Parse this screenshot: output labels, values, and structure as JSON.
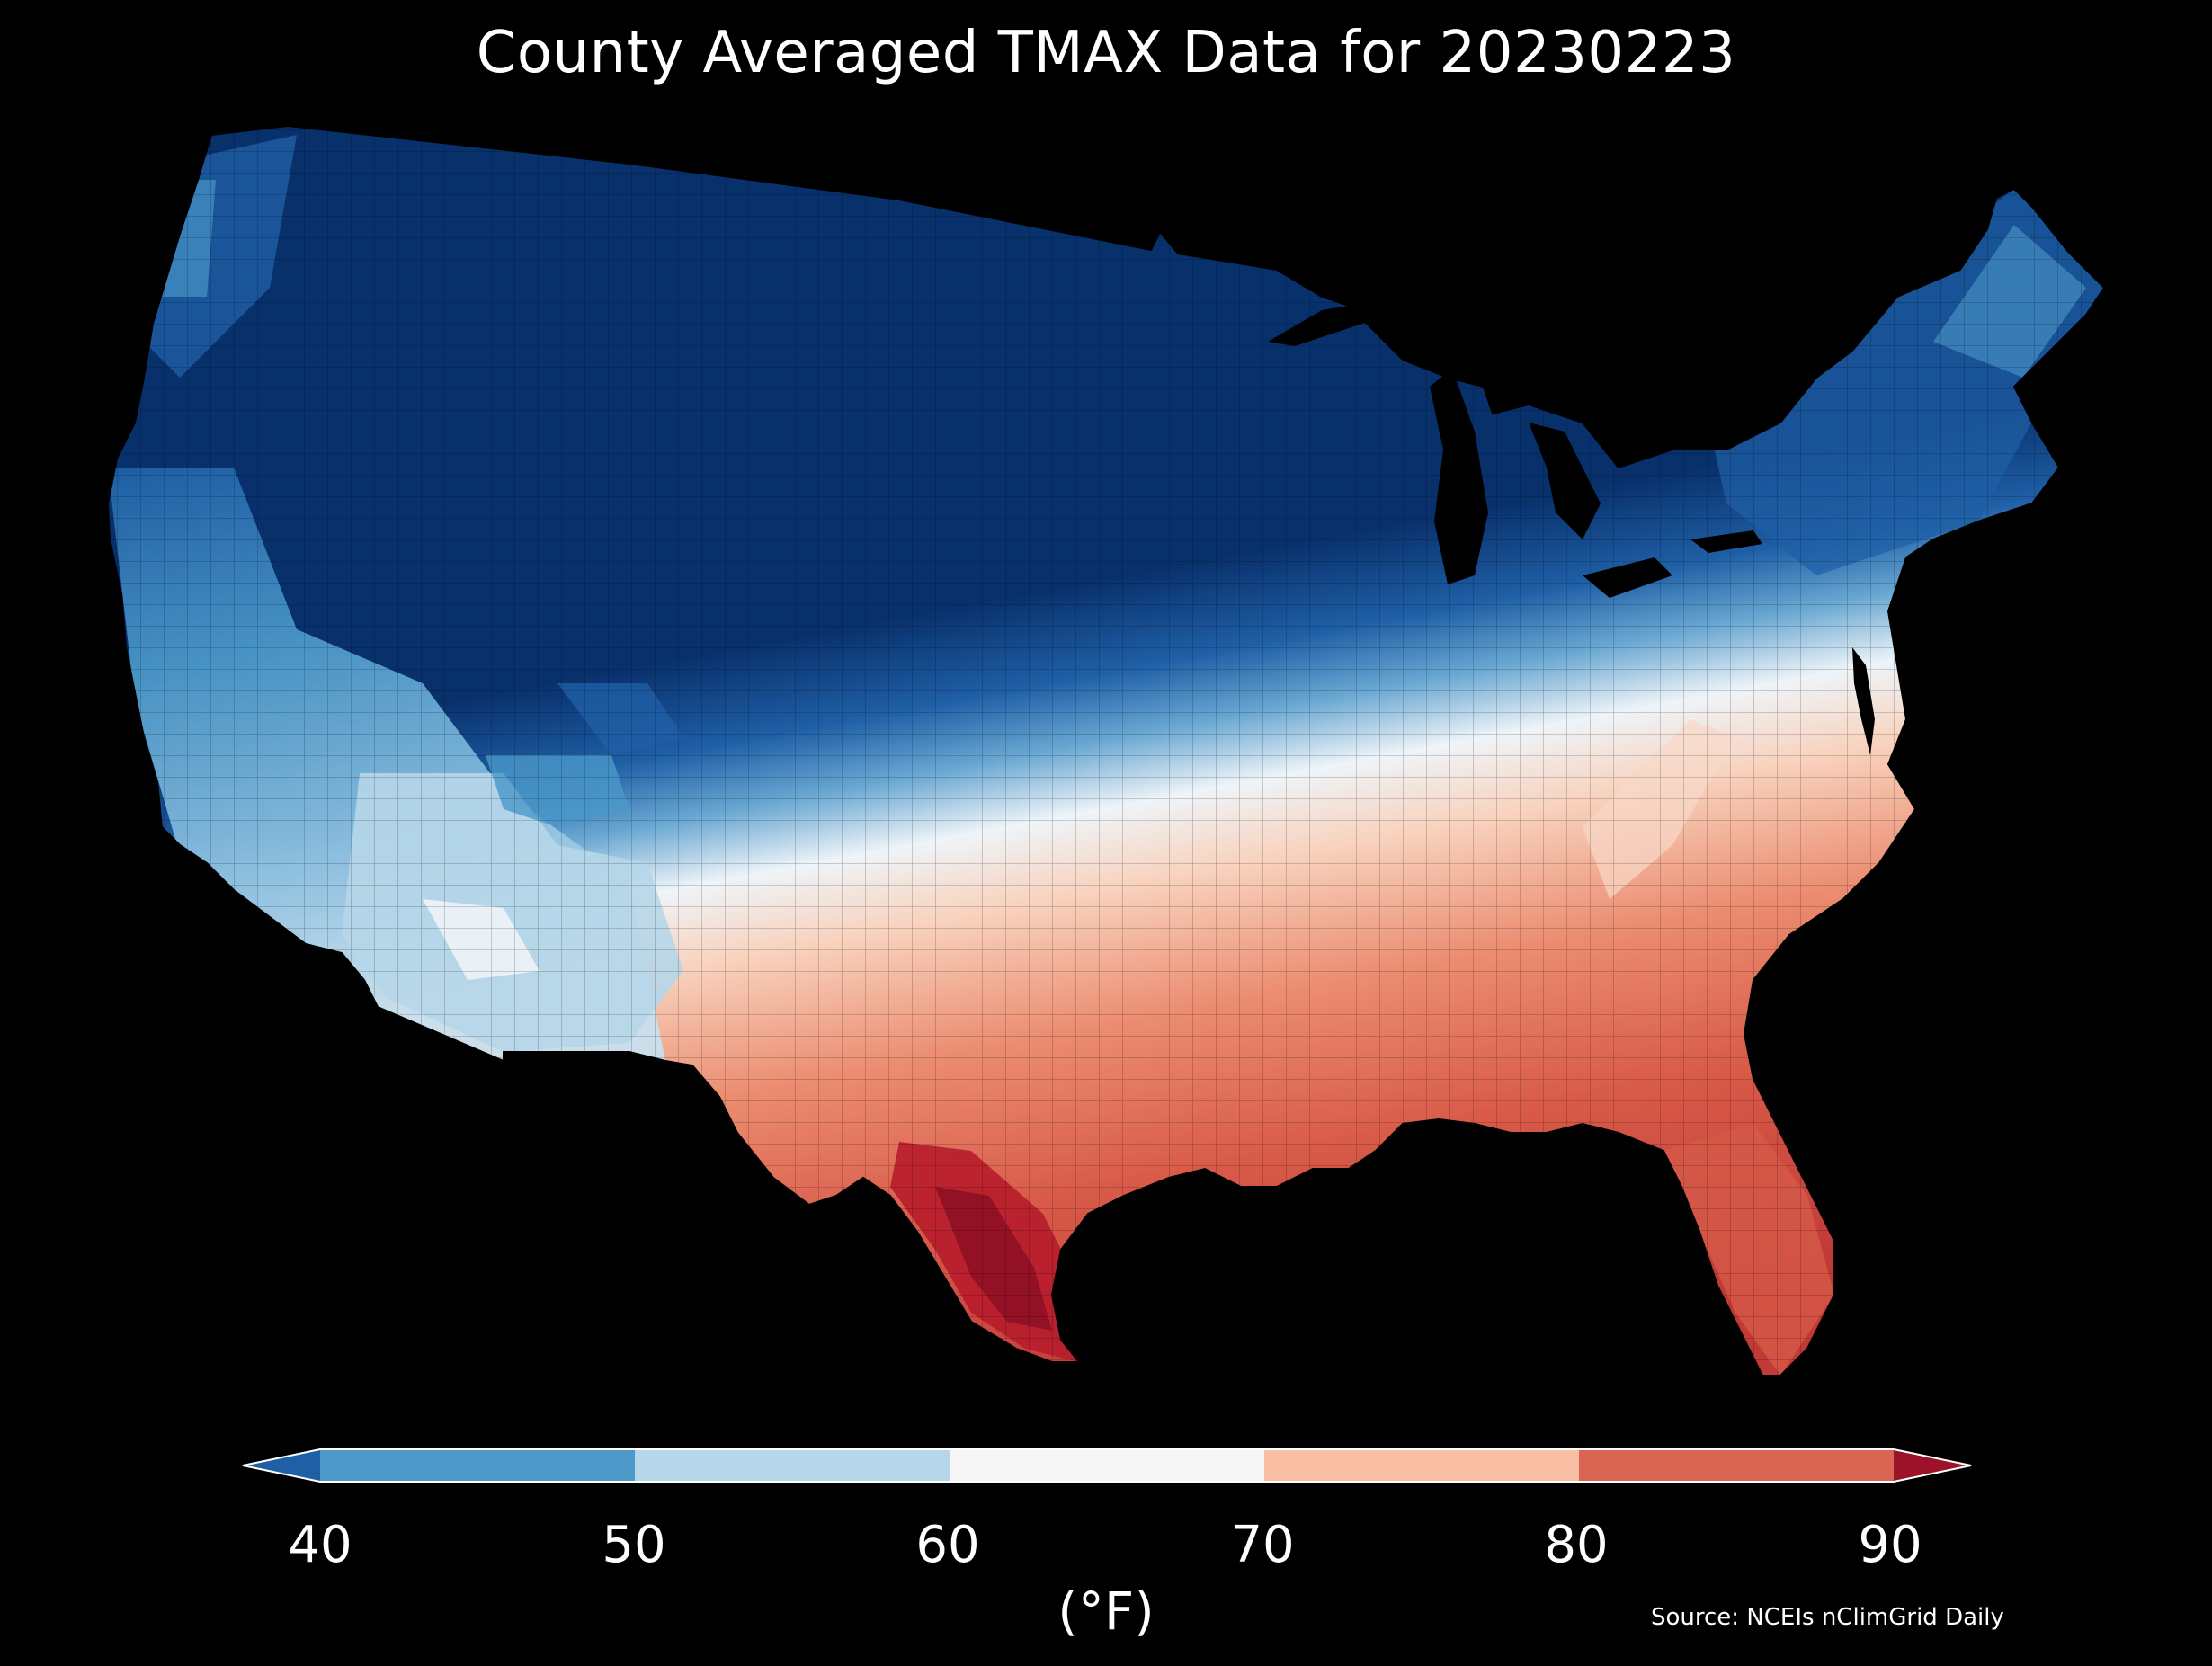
{
  "title": "County Averaged TMAX Data for 20230223",
  "colorbar": {
    "ticks": [
      "40",
      "50",
      "60",
      "70",
      "80",
      "90"
    ],
    "unit_label": "(°F)",
    "bins": [
      {
        "range": "<40",
        "color": "#1f5fa6"
      },
      {
        "range": "40-50",
        "color": "#4b98c9"
      },
      {
        "range": "50-60",
        "color": "#b6d6e9"
      },
      {
        "range": "60-70",
        "color": "#f6f6f6"
      },
      {
        "range": "70-80",
        "color": "#f8bfa4"
      },
      {
        "range": "80-90",
        "color": "#da6552"
      },
      {
        "range": ">90",
        "color": "#9c1228"
      }
    ]
  },
  "source": "Source: NCEIs nClimGrid Daily",
  "region_colors": {
    "deep_cold": "#08306b",
    "cold": "#1f5fa6",
    "cool": "#4b98c9",
    "mild": "#b6d6e9",
    "neutral": "#f6f6f6",
    "warm": "#f8bfa4",
    "hot": "#da6552",
    "very_hot": "#9c1228"
  }
}
